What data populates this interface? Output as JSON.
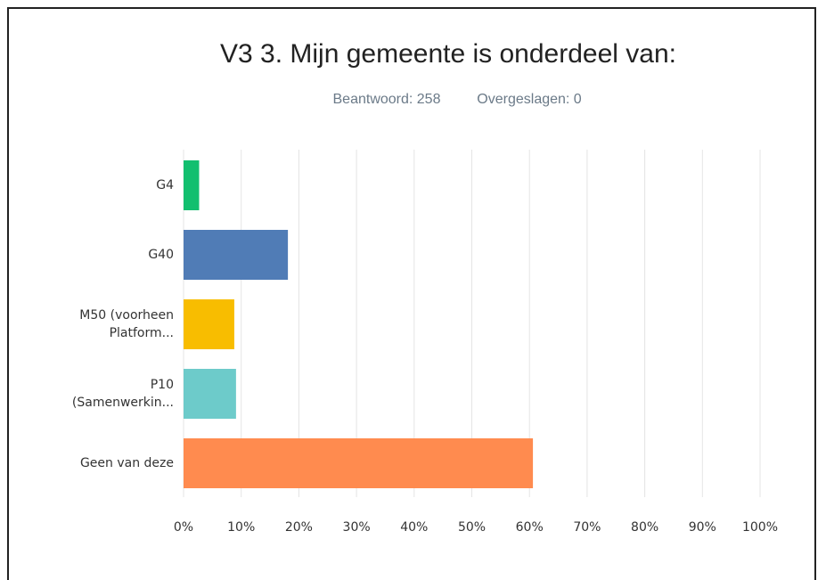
{
  "chart_data": {
    "type": "bar",
    "orientation": "horizontal",
    "title": "V3 3. Mijn gemeente is onderdeel van:",
    "answered": "Beantwoord: 258",
    "skipped": "Overgeslagen: 0",
    "categories": [
      "G4",
      "G40",
      "M50 (voorheen Platform...",
      "P10 (Samenwerkin...",
      "Geen van deze"
    ],
    "values": [
      2.7,
      18.1,
      8.8,
      9.1,
      60.6
    ],
    "colors": [
      "#12bf6f",
      "#507cb6",
      "#f8bd00",
      "#6dcbca",
      "#ff8b4f"
    ],
    "xlim": [
      0,
      100
    ],
    "xticks": [
      {
        "value": 0,
        "label": "0%"
      },
      {
        "value": 10,
        "label": "10%"
      },
      {
        "value": 20,
        "label": "20%"
      },
      {
        "value": 30,
        "label": "30%"
      },
      {
        "value": 40,
        "label": "40%"
      },
      {
        "value": 50,
        "label": "50%"
      },
      {
        "value": 60,
        "label": "60%"
      },
      {
        "value": 70,
        "label": "70%"
      },
      {
        "value": 80,
        "label": "80%"
      },
      {
        "value": 90,
        "label": "90%"
      },
      {
        "value": 100,
        "label": "100%"
      }
    ],
    "grid": true
  }
}
